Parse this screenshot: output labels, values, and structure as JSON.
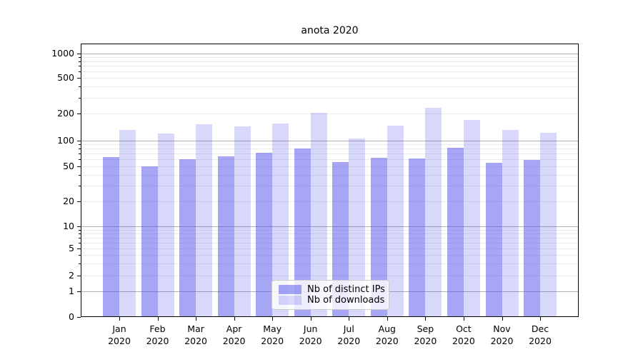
{
  "chart_data": {
    "type": "bar",
    "title": "anota 2020",
    "categories": [
      "Jan",
      "Feb",
      "Mar",
      "Apr",
      "May",
      "Jun",
      "Jul",
      "Aug",
      "Sep",
      "Oct",
      "Nov",
      "Dec"
    ],
    "category_year": "2020",
    "series": [
      {
        "name": "Nb of distinct IPs",
        "fill": "rgba(70,70,235,0.48)",
        "values": [
          64,
          50,
          61,
          65,
          72,
          81,
          56,
          63,
          62,
          82,
          55,
          59
        ]
      },
      {
        "name": "Nb of downloads",
        "fill": "rgba(70,70,235,0.21)",
        "values": [
          130,
          119,
          152,
          145,
          155,
          203,
          105,
          147,
          230,
          169,
          131,
          122
        ]
      }
    ],
    "xlabel": "",
    "ylabel": "",
    "yscale": "symlog",
    "yticks": [
      0,
      1,
      2,
      5,
      10,
      20,
      50,
      100,
      200,
      500,
      1000
    ],
    "ylim": [
      0,
      1300
    ],
    "grid": true,
    "legend_position": "lower center"
  },
  "colors": {
    "bar_base": "#4646eb",
    "grid_major": "#b0b0b0",
    "grid_minor": "#ebebeb",
    "axis": "#000000",
    "legend_border": "#cbcbcb",
    "legend_background": "rgba(255,255,255,0.8)"
  }
}
